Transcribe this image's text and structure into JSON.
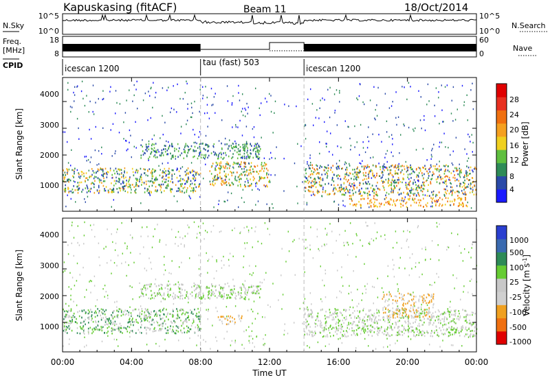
{
  "header": {
    "station": "Kapuskasing (fitACF)",
    "beam": "Beam 11",
    "date": "18/Oct/2014"
  },
  "strips": {
    "nsky_label": "N.Sky",
    "nsearch_label": "N.Search",
    "freq_label": "Freq.",
    "freq_unit": "[MHz]",
    "nave_label": "Nave",
    "cpid_label": "CPID",
    "nsky_ticks": [
      "10^5",
      "10^0"
    ],
    "nsearch_ticks": [
      "10^5",
      "10^0"
    ],
    "freq_ticks": [
      "18",
      "8"
    ],
    "nave_ticks": [
      "60",
      "0"
    ],
    "cpid_segments": [
      {
        "label": "icescan 1200",
        "start_hour": 0,
        "end_hour": 8
      },
      {
        "label": "tau (fast) 503",
        "start_hour": 8,
        "end_hour": 14
      },
      {
        "label": "icescan 1200",
        "start_hour": 14,
        "end_hour": 24
      }
    ]
  },
  "power_panel": {
    "ylabel": "Slant Range [km]",
    "yticks": [
      "1000",
      "2000",
      "3000",
      "4000"
    ],
    "colorbar_label": "Power [dB]",
    "colorbar_ticks": [
      "4",
      "8",
      "12",
      "16",
      "20",
      "24",
      "28"
    ],
    "colors": [
      "#1a1aff",
      "#2a4aa8",
      "#2e8b57",
      "#5fbf3f",
      "#f0d020",
      "#f5a020",
      "#f07010",
      "#e83020",
      "#e00000"
    ]
  },
  "velocity_panel": {
    "ylabel": "Slant Range [km]",
    "yticks": [
      "1000",
      "2000",
      "3000",
      "4000"
    ],
    "colorbar_label": "Velocity [m s^-1]",
    "colorbar_ticks": [
      "1000",
      "500",
      "100",
      "25",
      "-25",
      "-100",
      "-500",
      "-1000"
    ],
    "colors": [
      "#2a3fd0",
      "#3a6ab0",
      "#2e8b57",
      "#66cc33",
      "#c8c8c8",
      "#d0d0d0",
      "#f0a020",
      "#f07010",
      "#e00000"
    ]
  },
  "x_axis": {
    "label": "Time UT",
    "ticks": [
      "00:00",
      "04:00",
      "08:00",
      "12:00",
      "16:00",
      "20:00",
      "00:00"
    ]
  },
  "chart_data": [
    {
      "type": "heatmap",
      "title": "Power",
      "xlabel": "Time UT",
      "ylabel": "Slant Range [km]",
      "xlim_hours": [
        0,
        24
      ],
      "ylim": [
        180,
        4500
      ],
      "colorbar_range": [
        0,
        32
      ],
      "colorbar_label": "Power [dB]",
      "scatter_regions": [
        {
          "t0": 0.0,
          "t1": 8.0,
          "r0": 800,
          "r1": 1600,
          "levels": [
            4,
            8,
            12,
            16,
            20
          ]
        },
        {
          "t0": 4.5,
          "t1": 11.5,
          "r0": 1900,
          "r1": 2400,
          "levels": [
            4,
            8,
            12
          ]
        },
        {
          "t0": 8.5,
          "t1": 12.0,
          "r0": 1000,
          "r1": 1800,
          "levels": [
            8,
            12,
            16,
            20,
            24
          ]
        },
        {
          "t0": 14.0,
          "t1": 24.0,
          "r0": 700,
          "r1": 1700,
          "levels": [
            4,
            8,
            12,
            16,
            20,
            24
          ]
        },
        {
          "t0": 16.5,
          "t1": 23.5,
          "r0": 350,
          "r1": 650,
          "levels": [
            16,
            20,
            24
          ]
        }
      ]
    },
    {
      "type": "heatmap",
      "title": "Velocity",
      "xlabel": "Time UT",
      "ylabel": "Slant Range [km]",
      "xlim_hours": [
        0,
        24
      ],
      "ylim": [
        180,
        4500
      ],
      "colorbar_range": [
        -1000,
        1000
      ],
      "colorbar_label": "Velocity [m s^-1]",
      "scatter_regions": [
        {
          "t0": 0.0,
          "t1": 8.0,
          "r0": 800,
          "r1": 1600,
          "levels": [
            -25,
            25,
            100
          ]
        },
        {
          "t0": 4.5,
          "t1": 11.5,
          "r0": 1900,
          "r1": 2400,
          "levels": [
            -25,
            25
          ]
        },
        {
          "t0": 9.0,
          "t1": 10.5,
          "r0": 1100,
          "r1": 1400,
          "levels": [
            -100,
            -500
          ]
        },
        {
          "t0": 14.0,
          "t1": 24.0,
          "r0": 700,
          "r1": 1600,
          "levels": [
            -25,
            25,
            -100
          ]
        },
        {
          "t0": 18.5,
          "t1": 21.5,
          "r0": 1300,
          "r1": 2100,
          "levels": [
            -100,
            -500
          ]
        }
      ]
    }
  ]
}
